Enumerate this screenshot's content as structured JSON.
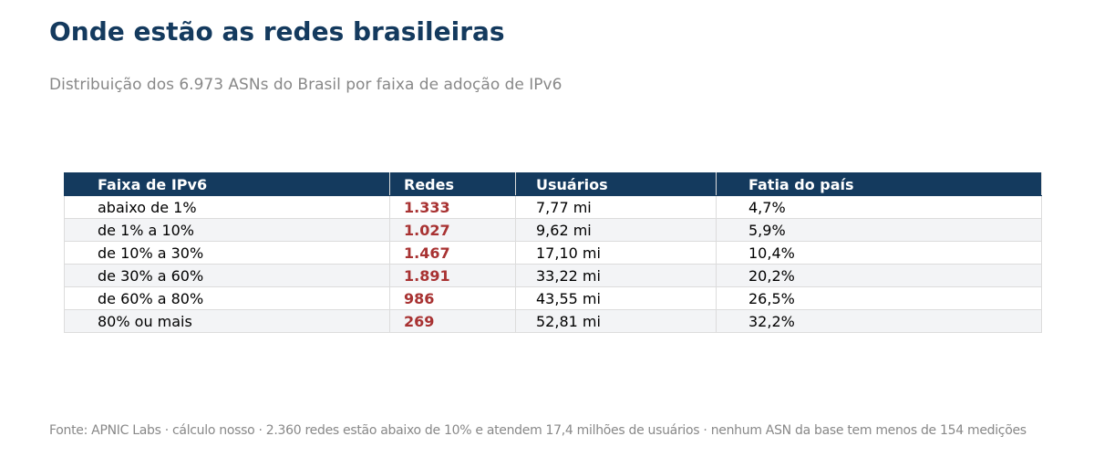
{
  "header": {
    "title": "Onde estão as redes brasileiras",
    "subtitle": "Distribuição dos 6.973 ASNs do Brasil por faixa de adoção de IPv6"
  },
  "table": {
    "columns": [
      "Faixa de IPv6",
      "Redes",
      "Usuários",
      "Fatia do país"
    ],
    "rows": [
      [
        "abaixo de 1%",
        "1.333",
        "7,77 mi",
        "4,7%"
      ],
      [
        "de 1% a 10%",
        "1.027",
        "9,62 mi",
        "5,9%"
      ],
      [
        "de 10% a 30%",
        "1.467",
        "17,10 mi",
        "10,4%"
      ],
      [
        "de 30% a 60%",
        "1.891",
        "33,22 mi",
        "20,2%"
      ],
      [
        "de 60% a 80%",
        "986",
        "43,55 mi",
        "26,5%"
      ],
      [
        "80% ou mais",
        "269",
        "52,81 mi",
        "32,2%"
      ]
    ]
  },
  "footer": {
    "source": "Fonte: APNIC Labs · cálculo nosso · 2.360 redes estão abaixo de 10% e atendem 17,4 milhões de usuários · nenhum ASN da base tem menos de 154 medições"
  }
}
